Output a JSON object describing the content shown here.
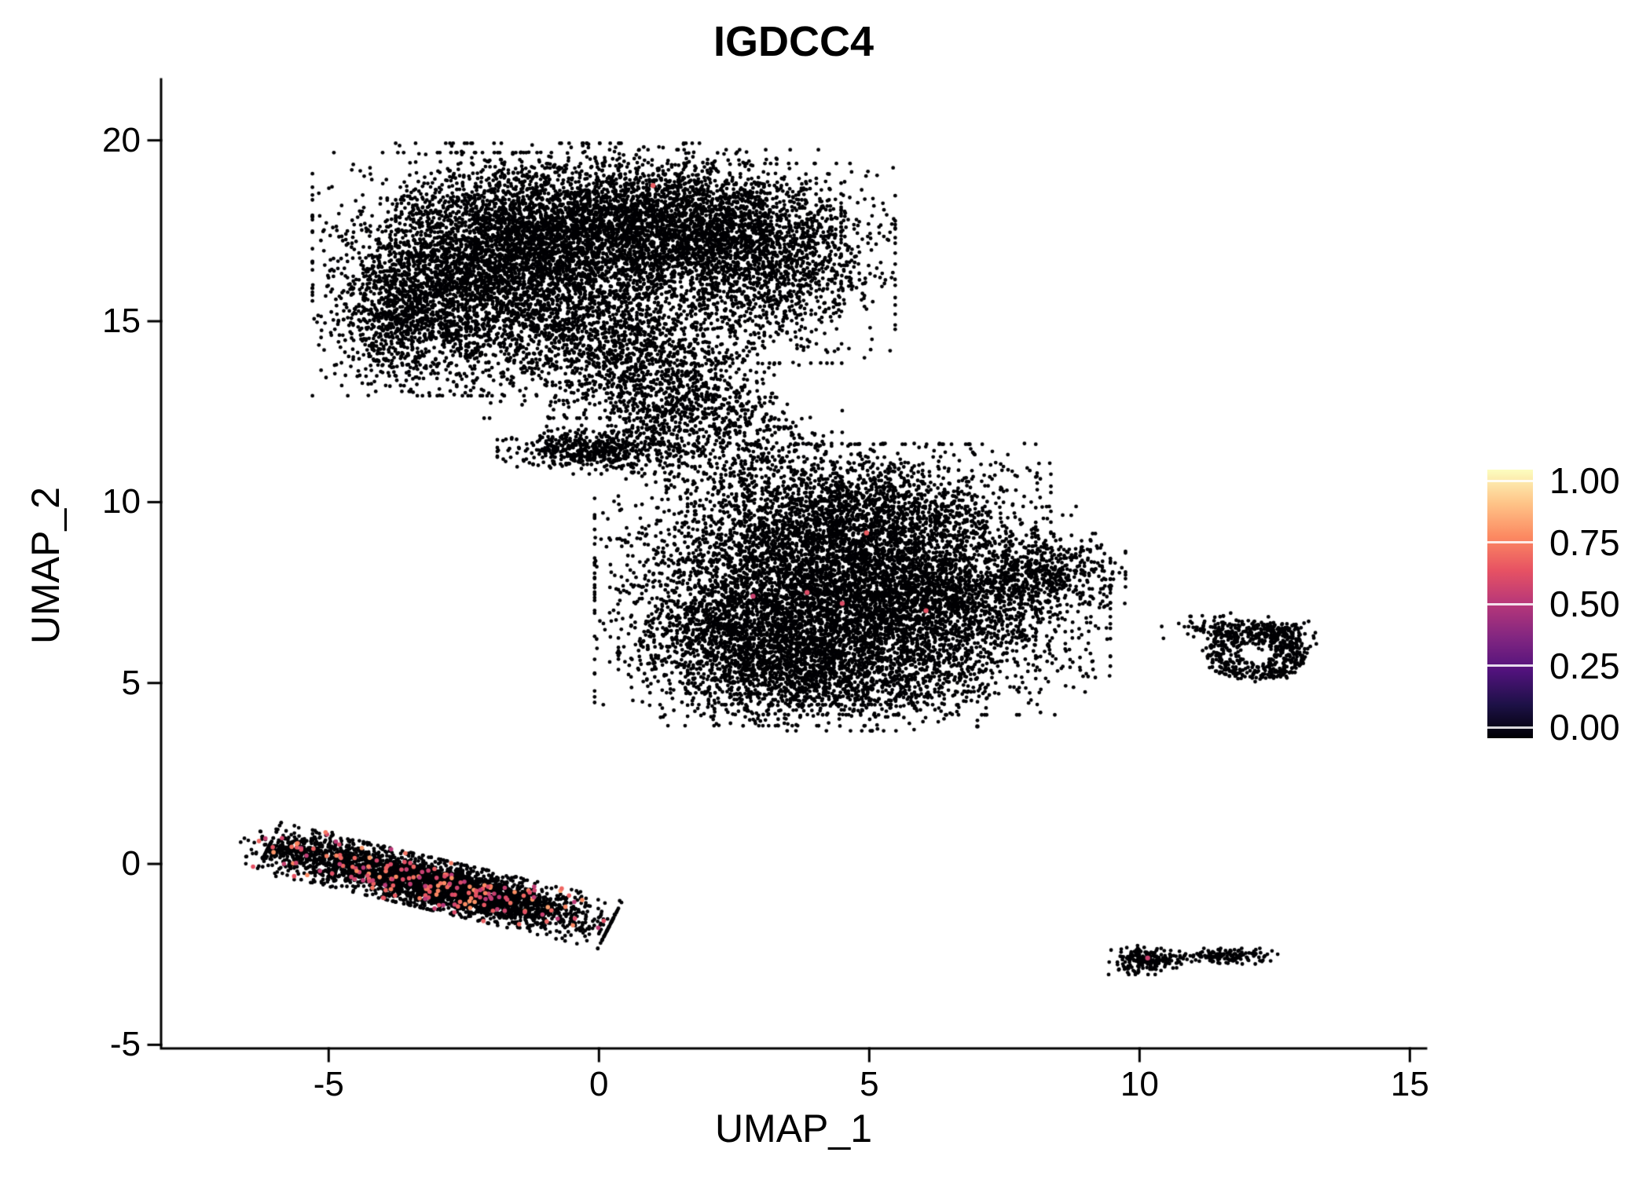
{
  "chart_data": {
    "type": "scatter",
    "title": "IGDCC4",
    "xlabel": "UMAP_1",
    "ylabel": "UMAP_2",
    "xlim": [
      -8.1,
      15.3
    ],
    "ylim": [
      -5.1,
      21.6
    ],
    "grid": false,
    "legend_position": "right",
    "point_color_zero": "#000004",
    "x_ticks": [
      {
        "v": -5,
        "label": "-5"
      },
      {
        "v": 0,
        "label": "0"
      },
      {
        "v": 5,
        "label": "5"
      },
      {
        "v": 10,
        "label": "10"
      },
      {
        "v": 15,
        "label": "15"
      }
    ],
    "y_ticks": [
      {
        "v": -5,
        "label": "-5"
      },
      {
        "v": 0,
        "label": "0"
      },
      {
        "v": 5,
        "label": "5"
      },
      {
        "v": 10,
        "label": "10"
      },
      {
        "v": 15,
        "label": "15"
      },
      {
        "v": 20,
        "label": "20"
      }
    ],
    "colorbar": {
      "items": [
        {
          "v": 1.0,
          "label": "1.00"
        },
        {
          "v": 0.75,
          "label": "0.75"
        },
        {
          "v": 0.5,
          "label": "0.50"
        },
        {
          "v": 0.25,
          "label": "0.25"
        },
        {
          "v": 0.0,
          "label": "0.00"
        }
      ],
      "stops": [
        {
          "pos": 0.0,
          "color": "#000004"
        },
        {
          "pos": 0.125,
          "color": "#1d1147"
        },
        {
          "pos": 0.25,
          "color": "#51127c"
        },
        {
          "pos": 0.375,
          "color": "#822681"
        },
        {
          "pos": 0.5,
          "color": "#b73779"
        },
        {
          "pos": 0.625,
          "color": "#e75263"
        },
        {
          "pos": 0.75,
          "color": "#fc8961"
        },
        {
          "pos": 0.875,
          "color": "#fec488"
        },
        {
          "pos": 1.0,
          "color": "#fcfdbf"
        }
      ]
    },
    "clusters": [
      {
        "name": "top-blob-a",
        "n": 3200,
        "cx": -2.3,
        "cy": 16.3,
        "sx": 1.25,
        "sy": 1.4
      },
      {
        "name": "top-blob-b",
        "n": 2600,
        "cx": -0.4,
        "cy": 17.4,
        "sx": 1.4,
        "sy": 1.05
      },
      {
        "name": "top-blob-c",
        "n": 1900,
        "cx": 1.6,
        "cy": 17.7,
        "sx": 1.2,
        "sy": 0.85
      },
      {
        "name": "top-blob-d",
        "n": 1400,
        "cx": 3.2,
        "cy": 16.6,
        "sx": 0.95,
        "sy": 1.15
      },
      {
        "name": "top-blob-e",
        "n": 1200,
        "cx": 0.3,
        "cy": 14.6,
        "sx": 1.15,
        "sy": 0.95
      },
      {
        "name": "top-tail",
        "n": 500,
        "cx": 1.2,
        "cy": 13.0,
        "sx": 0.85,
        "sy": 0.75
      },
      {
        "name": "top-left-bump",
        "n": 600,
        "cx": -3.7,
        "cy": 15.1,
        "sx": 0.6,
        "sy": 0.85
      },
      {
        "name": "bridge-sparse",
        "n": 350,
        "cx": 2.5,
        "cy": 11.4,
        "sx": 1.0,
        "sy": 0.75,
        "clamp": 2.0
      },
      {
        "name": "bridge-wedge",
        "n": 500,
        "cx": -0.2,
        "cy": 11.45,
        "sx": 0.7,
        "sy": 0.28
      },
      {
        "name": "bridge-stream",
        "n": 250,
        "cx": 1.9,
        "cy": 12.6,
        "sx": 0.75,
        "sy": 0.55
      },
      {
        "name": "mid-blob-a",
        "n": 4200,
        "cx": 4.0,
        "cy": 8.0,
        "sx": 1.7,
        "sy": 1.5
      },
      {
        "name": "mid-blob-b",
        "n": 2600,
        "cx": 6.1,
        "cy": 7.0,
        "sx": 1.4,
        "sy": 1.2
      },
      {
        "name": "mid-blob-c",
        "n": 1600,
        "cx": 3.0,
        "cy": 6.1,
        "sx": 1.1,
        "sy": 0.95
      },
      {
        "name": "mid-blob-top",
        "n": 1200,
        "cx": 5.0,
        "cy": 9.7,
        "sx": 1.4,
        "sy": 0.8
      },
      {
        "name": "mid-right-tip",
        "n": 400,
        "cx": 8.3,
        "cy": 8.05,
        "sx": 0.6,
        "sy": 0.45
      },
      {
        "name": "mid-bottom",
        "n": 700,
        "cx": 4.4,
        "cy": 5.0,
        "sx": 1.15,
        "sy": 0.55
      },
      {
        "name": "right-ring-bump-a",
        "n": 100,
        "cx": 12.55,
        "cy": 6.35,
        "sx": 0.3,
        "sy": 0.2
      },
      {
        "name": "right-ring-bump-b",
        "n": 70,
        "cx": 11.55,
        "cy": 6.5,
        "sx": 0.3,
        "sy": 0.18
      },
      {
        "name": "right-ring-sparse",
        "n": 18,
        "cx": 10.95,
        "cy": 6.5,
        "sx": 0.3,
        "sy": 0.2,
        "clamp": 1.8
      },
      {
        "name": "bottom-left-strip",
        "n": 3400,
        "cx": -2.95,
        "cy": -0.6,
        "sx": 1.45,
        "sy": 0.3,
        "rot": -19,
        "clamp": 2.3
      },
      {
        "name": "bottom-left-end",
        "n": 250,
        "cx": -5.6,
        "cy": 0.3,
        "sx": 0.45,
        "sy": 0.3,
        "rot": -15
      },
      {
        "name": "bottom-right-blob-a",
        "n": 200,
        "cx": 10.1,
        "cy": -2.65,
        "sx": 0.28,
        "sy": 0.17
      },
      {
        "name": "bottom-right-dash",
        "n": 130,
        "cx": 11.65,
        "cy": -2.55,
        "sx": 0.38,
        "sy": 0.09
      },
      {
        "name": "bottom-right-dot",
        "n": 15,
        "cx": 10.75,
        "cy": -2.6,
        "sx": 0.12,
        "sy": 0.06
      },
      {
        "name": "bottom-left-strip-expressing",
        "n": 160,
        "cx": -2.95,
        "cy": -0.6,
        "sx": 1.45,
        "sy": 0.3,
        "rot": -19,
        "clamp": 2.2,
        "vmin": 0.5,
        "vmax": 0.8
      },
      {
        "name": "bottom-left-end-expressing",
        "n": 20,
        "cx": -5.6,
        "cy": 0.3,
        "sx": 0.45,
        "sy": 0.3,
        "rot": -15,
        "vmin": 0.5,
        "vmax": 0.8
      }
    ],
    "rings": [
      {
        "name": "right-donut",
        "n": 480,
        "cx": 12.15,
        "cy": 5.85,
        "rin": 0.3,
        "rout": 0.95,
        "yscale": 0.85
      }
    ],
    "extra_points": [
      [
        7.0,
        3.8
      ]
    ],
    "highlight_points": [
      [
        1.0,
        18.75,
        0.65
      ],
      [
        4.95,
        9.15,
        0.65
      ],
      [
        3.85,
        7.5,
        0.6
      ],
      [
        4.5,
        7.2,
        0.6
      ],
      [
        6.05,
        7.0,
        0.62
      ],
      [
        2.85,
        7.4,
        0.55
      ],
      [
        10.15,
        -2.6,
        0.55
      ]
    ]
  }
}
